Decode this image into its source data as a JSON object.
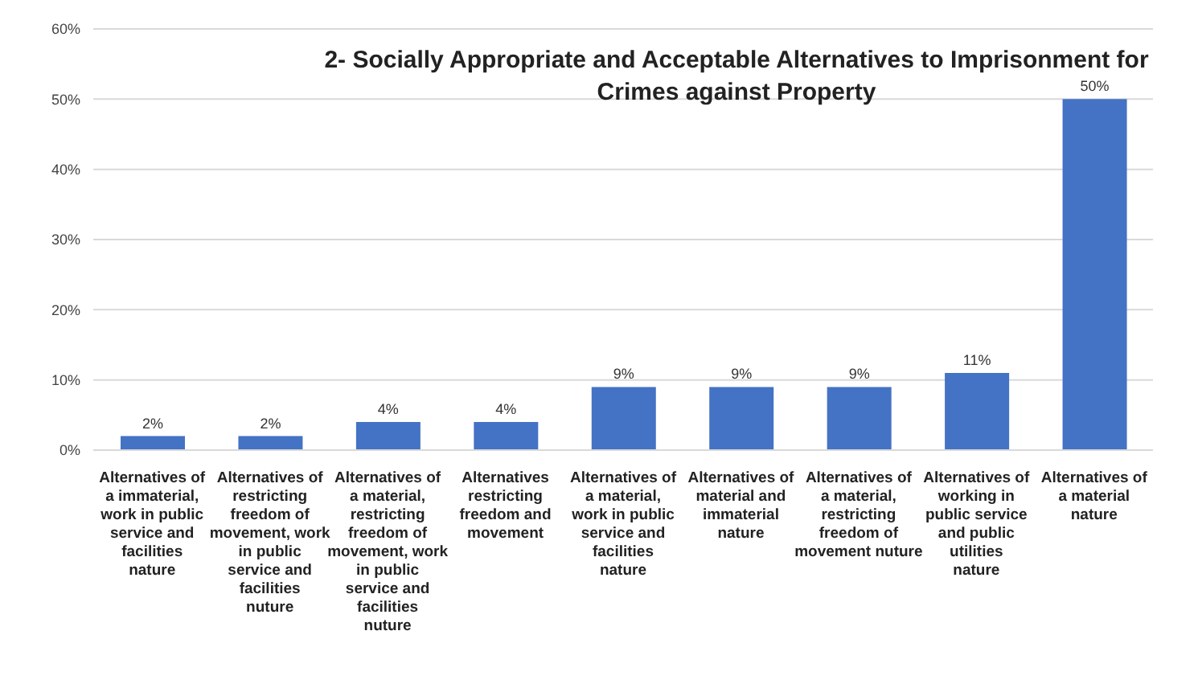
{
  "chart_data": {
    "type": "bar",
    "title": "2- Socially Appropriate and Acceptable Alternatives to Imprisonment for Crimes against Property",
    "categories": [
      "Alternatives of a immaterial, work in public service and facilities nature",
      "Alternatives of restricting freedom of movement, work in public service and facilities nuture",
      "Alternatives of a material, restricting freedom of movement, work in public service and facilities nuture",
      "Alternatives restricting freedom and movement",
      "Alternatives of a material, work in public service and facilities nature",
      "Alternatives of material and immaterial nature",
      "Alternatives of a material, restricting freedom of movement nuture",
      "Alternatives of working in public service and public utilities nature",
      "Alternatives of a material nature"
    ],
    "values": [
      2,
      2,
      4,
      4,
      9,
      9,
      9,
      11,
      50
    ],
    "value_labels": [
      "2%",
      "2%",
      "4%",
      "4%",
      "9%",
      "9%",
      "9%",
      "11%",
      "50%"
    ],
    "color": "#4472c4",
    "ylim": [
      0,
      60
    ],
    "yticks": [
      {
        "value": 0,
        "label": "0%"
      },
      {
        "value": 10,
        "label": "10%"
      },
      {
        "value": 20,
        "label": "20%"
      },
      {
        "value": 30,
        "label": "30%"
      },
      {
        "value": 40,
        "label": "40%"
      },
      {
        "value": 50,
        "label": "50%"
      },
      {
        "value": 60,
        "label": "60%"
      }
    ],
    "grid": "y"
  }
}
